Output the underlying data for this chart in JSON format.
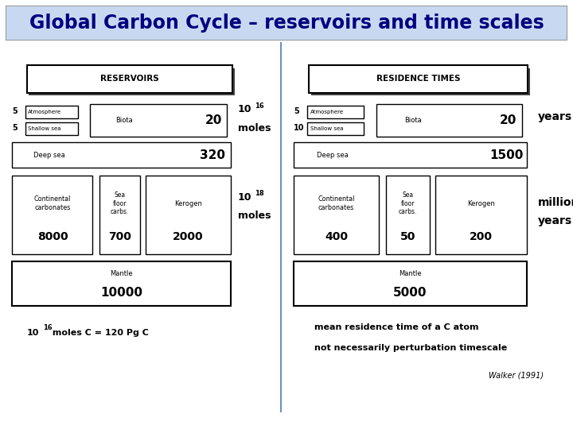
{
  "title": "Global Carbon Cycle – reservoirs and time scales",
  "title_bg": "#c8d8f0",
  "title_fontsize": 17,
  "bg_color": "#ffffff",
  "divider_color": "#7090c0",
  "left_panel": {
    "header": "RESERVOIRS",
    "atm_label": "Atmosphere",
    "atm_value": "5",
    "shallow_label": "Shallow sea",
    "shallow_value": "5",
    "biota_label": "Biota",
    "biota_value": "20",
    "deepsea_label": "Deep sea",
    "deepsea_value": "320",
    "contcarb_label": "Continental\ncarbonates",
    "contcarb_value": "8000",
    "seafloor_label": "Sea\nfloor\ncarbs.",
    "seafloor_value": "700",
    "kerogen_label": "Kerogen",
    "kerogen_value": "2000",
    "mantle_label": "Mantle",
    "mantle_value": "10000",
    "unit16_line1": "10",
    "unit16_sup": "16",
    "unit16_line2": "moles",
    "unit18_line1": "10",
    "unit18_sup": "18",
    "unit18_line2": "moles",
    "footnote": "10",
    "footnote_sup": "16",
    "footnote_rest": " moles C = 120 Pg C"
  },
  "right_panel": {
    "header": "RESIDENCE TIMES",
    "atm_label": "Atmosphere",
    "atm_value": "5",
    "shallow_label": "Shallow sea",
    "shallow_value": "10",
    "biota_label": "Biota",
    "biota_value": "20",
    "deepsea_label": "Deep sea",
    "deepsea_value": "1500",
    "contcarb_label": "Continental\ncarbonates",
    "contcarb_value": "400",
    "seafloor_label": "Sea\nfloor\ncarbs.",
    "seafloor_value": "50",
    "kerogen_label": "Kerogen",
    "kerogen_value": "200",
    "mantle_label": "Mantle",
    "mantle_value": "5000",
    "unit_years": "years",
    "unit_millyears_1": "million",
    "unit_millyears_2": "years",
    "footnote1": "mean residence time of a C atom",
    "footnote2": "not necessarily perturbation timescale",
    "citation": "Walker (1991)"
  }
}
